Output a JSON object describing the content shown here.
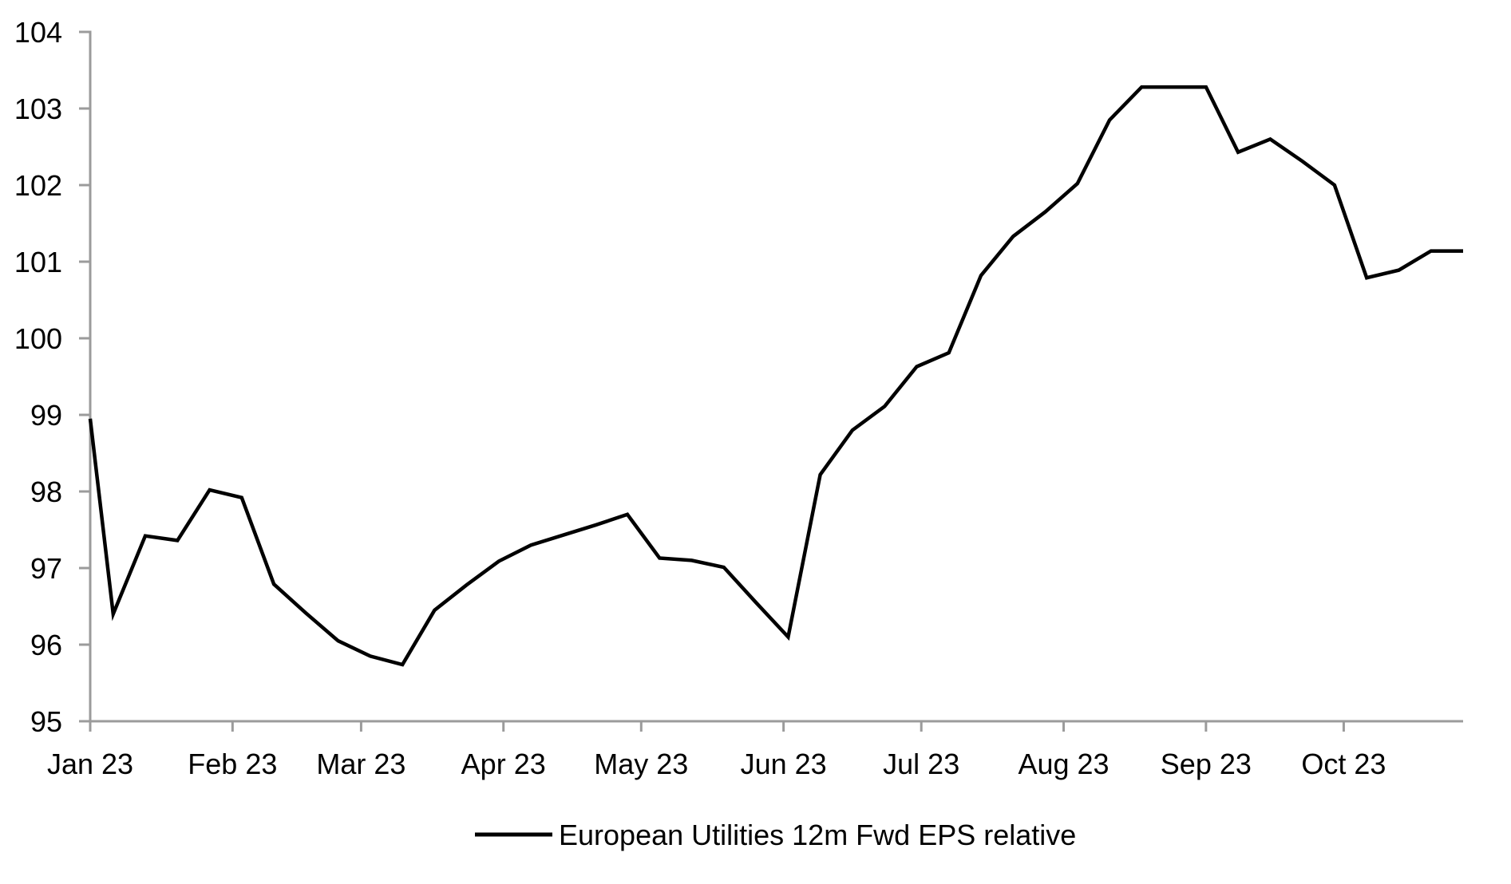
{
  "legend": {
    "label": "European Utilities 12m Fwd EPS relative"
  },
  "colors": {
    "line": "#000000",
    "axis": "#9b9b9b",
    "text": "#000000",
    "background": "#ffffff"
  },
  "y_axis": {
    "ticks": [
      {
        "value": 95,
        "label": "95"
      },
      {
        "value": 96,
        "label": "96"
      },
      {
        "value": 97,
        "label": "97"
      },
      {
        "value": 98,
        "label": "98"
      },
      {
        "value": 99,
        "label": "99"
      },
      {
        "value": 100,
        "label": "100"
      },
      {
        "value": 101,
        "label": "101"
      },
      {
        "value": 102,
        "label": "102"
      },
      {
        "value": 103,
        "label": "103"
      },
      {
        "value": 104,
        "label": "104"
      }
    ]
  },
  "x_axis": {
    "ticks": [
      {
        "day": 0,
        "label": "Jan 23"
      },
      {
        "day": 31,
        "label": "Feb 23"
      },
      {
        "day": 59,
        "label": "Mar 23"
      },
      {
        "day": 90,
        "label": "Apr 23"
      },
      {
        "day": 120,
        "label": "May 23"
      },
      {
        "day": 151,
        "label": "Jun 23"
      },
      {
        "day": 181,
        "label": "Jul 23"
      },
      {
        "day": 212,
        "label": "Aug 23"
      },
      {
        "day": 243,
        "label": "Sep 23"
      },
      {
        "day": 273,
        "label": "Oct 23"
      }
    ]
  },
  "chart_data": {
    "type": "line",
    "title": "",
    "xlabel": "",
    "ylabel": "",
    "ylim": [
      95,
      104
    ],
    "x_span_days": 299,
    "grid": false,
    "legend_position": "bottom-center",
    "series": [
      {
        "name": "European Utilities 12m Fwd EPS relative",
        "color": "#000000",
        "points": [
          {
            "date": "2023-01-01",
            "day": 0,
            "value": 98.95
          },
          {
            "date": "2023-01-06",
            "day": 5,
            "value": 96.4
          },
          {
            "date": "2023-01-13",
            "day": 12,
            "value": 97.42
          },
          {
            "date": "2023-01-20",
            "day": 19,
            "value": 97.36
          },
          {
            "date": "2023-01-27",
            "day": 26,
            "value": 98.02
          },
          {
            "date": "2023-02-03",
            "day": 33,
            "value": 97.92
          },
          {
            "date": "2023-02-10",
            "day": 40,
            "value": 96.79
          },
          {
            "date": "2023-02-17",
            "day": 47,
            "value": 96.41
          },
          {
            "date": "2023-02-24",
            "day": 54,
            "value": 96.05
          },
          {
            "date": "2023-03-03",
            "day": 61,
            "value": 95.85
          },
          {
            "date": "2023-03-10",
            "day": 68,
            "value": 95.74
          },
          {
            "date": "2023-03-17",
            "day": 75,
            "value": 96.45
          },
          {
            "date": "2023-03-24",
            "day": 82,
            "value": 96.78
          },
          {
            "date": "2023-03-31",
            "day": 89,
            "value": 97.09
          },
          {
            "date": "2023-04-07",
            "day": 96,
            "value": 97.3
          },
          {
            "date": "2023-04-14",
            "day": 103,
            "value": 97.43
          },
          {
            "date": "2023-04-21",
            "day": 110,
            "value": 97.56
          },
          {
            "date": "2023-04-28",
            "day": 117,
            "value": 97.7
          },
          {
            "date": "2023-05-05",
            "day": 124,
            "value": 97.13
          },
          {
            "date": "2023-05-12",
            "day": 131,
            "value": 97.1
          },
          {
            "date": "2023-05-19",
            "day": 138,
            "value": 97.01
          },
          {
            "date": "2023-05-26",
            "day": 145,
            "value": 96.55
          },
          {
            "date": "2023-06-02",
            "day": 152,
            "value": 96.1
          },
          {
            "date": "2023-06-09",
            "day": 159,
            "value": 98.22
          },
          {
            "date": "2023-06-16",
            "day": 166,
            "value": 98.8
          },
          {
            "date": "2023-06-23",
            "day": 173,
            "value": 99.11
          },
          {
            "date": "2023-06-30",
            "day": 180,
            "value": 99.63
          },
          {
            "date": "2023-07-07",
            "day": 187,
            "value": 99.81
          },
          {
            "date": "2023-07-14",
            "day": 194,
            "value": 100.82
          },
          {
            "date": "2023-07-21",
            "day": 201,
            "value": 101.33
          },
          {
            "date": "2023-07-28",
            "day": 208,
            "value": 101.65
          },
          {
            "date": "2023-08-04",
            "day": 215,
            "value": 102.02
          },
          {
            "date": "2023-08-11",
            "day": 222,
            "value": 102.85
          },
          {
            "date": "2023-08-18",
            "day": 229,
            "value": 103.28
          },
          {
            "date": "2023-08-25",
            "day": 236,
            "value": 103.28
          },
          {
            "date": "2023-09-01",
            "day": 243,
            "value": 103.28
          },
          {
            "date": "2023-09-08",
            "day": 250,
            "value": 102.43
          },
          {
            "date": "2023-09-15",
            "day": 257,
            "value": 102.6
          },
          {
            "date": "2023-09-22",
            "day": 264,
            "value": 102.31
          },
          {
            "date": "2023-09-29",
            "day": 271,
            "value": 102.0
          },
          {
            "date": "2023-10-06",
            "day": 278,
            "value": 100.79
          },
          {
            "date": "2023-10-13",
            "day": 285,
            "value": 100.89
          },
          {
            "date": "2023-10-20",
            "day": 292,
            "value": 101.14
          },
          {
            "date": "2023-10-27",
            "day": 299,
            "value": 101.14
          }
        ]
      }
    ]
  }
}
